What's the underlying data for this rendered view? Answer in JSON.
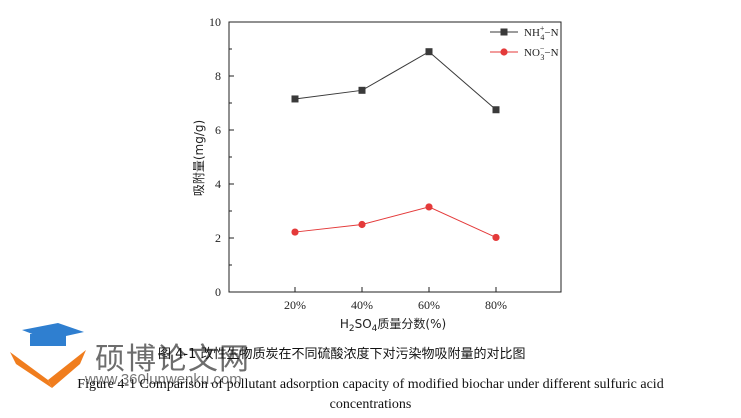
{
  "chart_data": {
    "type": "line",
    "categories": [
      "20%",
      "40%",
      "60%",
      "80%"
    ],
    "series": [
      {
        "name_main": "NH",
        "name_sup": "+",
        "name_sub": "4",
        "name_suffix": "−N",
        "values": [
          7.15,
          7.47,
          8.9,
          6.75
        ],
        "color": "#3a3a3a",
        "marker": "square"
      },
      {
        "name_main": "NO",
        "name_sup": "−",
        "name_sub": "3",
        "name_suffix": "−N",
        "values": [
          2.22,
          2.5,
          3.15,
          2.02
        ],
        "color": "#e43a3a",
        "marker": "circle"
      }
    ],
    "ylabel": "吸附量(mg/g)",
    "xlabel_prefix": "H",
    "xlabel_sub1": "2",
    "xlabel_mid": "SO",
    "xlabel_sub2": "4",
    "xlabel_suffix": "质量分数(%)",
    "ylim": [
      0,
      10
    ],
    "yticks": [
      "0",
      "2",
      "4",
      "6",
      "8",
      "10"
    ],
    "grid": false,
    "legend_position": "top-right"
  },
  "caption": {
    "chinese": "图 4-1 改性生物质炭在不同硫酸浓度下对污染物吸附量的对比图",
    "english_line1": "Figure 4-1 Comparison of pollutant adsorption capacity of modified biochar under different sulfuric acid",
    "english_line2": "concentrations"
  },
  "watermark": {
    "text": "硕博论文网",
    "url": "www.360lunwenku.com",
    "colors": {
      "blue": "#2f7fd0",
      "orange": "#f07d1e"
    }
  }
}
